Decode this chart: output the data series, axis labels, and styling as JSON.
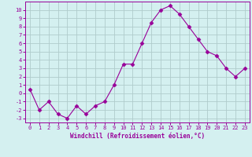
{
  "x": [
    0,
    1,
    2,
    3,
    4,
    5,
    6,
    7,
    8,
    9,
    10,
    11,
    12,
    13,
    14,
    15,
    16,
    17,
    18,
    19,
    20,
    21,
    22,
    23
  ],
  "y": [
    0.5,
    -2.0,
    -1.0,
    -2.5,
    -3.0,
    -1.5,
    -2.5,
    -1.5,
    -1.0,
    1.0,
    3.5,
    3.5,
    6.0,
    8.5,
    10.0,
    10.5,
    9.5,
    8.0,
    6.5,
    5.0,
    4.5,
    3.0,
    2.0,
    3.0
  ],
  "line_color": "#990099",
  "marker": "D",
  "marker_size": 2.5,
  "bg_color": "#d4f0f0",
  "grid_color": "#b0cccc",
  "axis_color": "#990099",
  "tick_color": "#990099",
  "xlabel": "Windchill (Refroidissement éolien,°C)",
  "xlabel_color": "#990099",
  "ylim": [
    -3.5,
    11.0
  ],
  "xlim": [
    -0.5,
    23.5
  ],
  "yticks": [
    -3,
    -2,
    -1,
    0,
    1,
    2,
    3,
    4,
    5,
    6,
    7,
    8,
    9,
    10
  ],
  "xticks": [
    0,
    1,
    2,
    3,
    4,
    5,
    6,
    7,
    8,
    9,
    10,
    11,
    12,
    13,
    14,
    15,
    16,
    17,
    18,
    19,
    20,
    21,
    22,
    23
  ],
  "tick_fontsize": 5.0,
  "xlabel_fontsize": 5.5
}
